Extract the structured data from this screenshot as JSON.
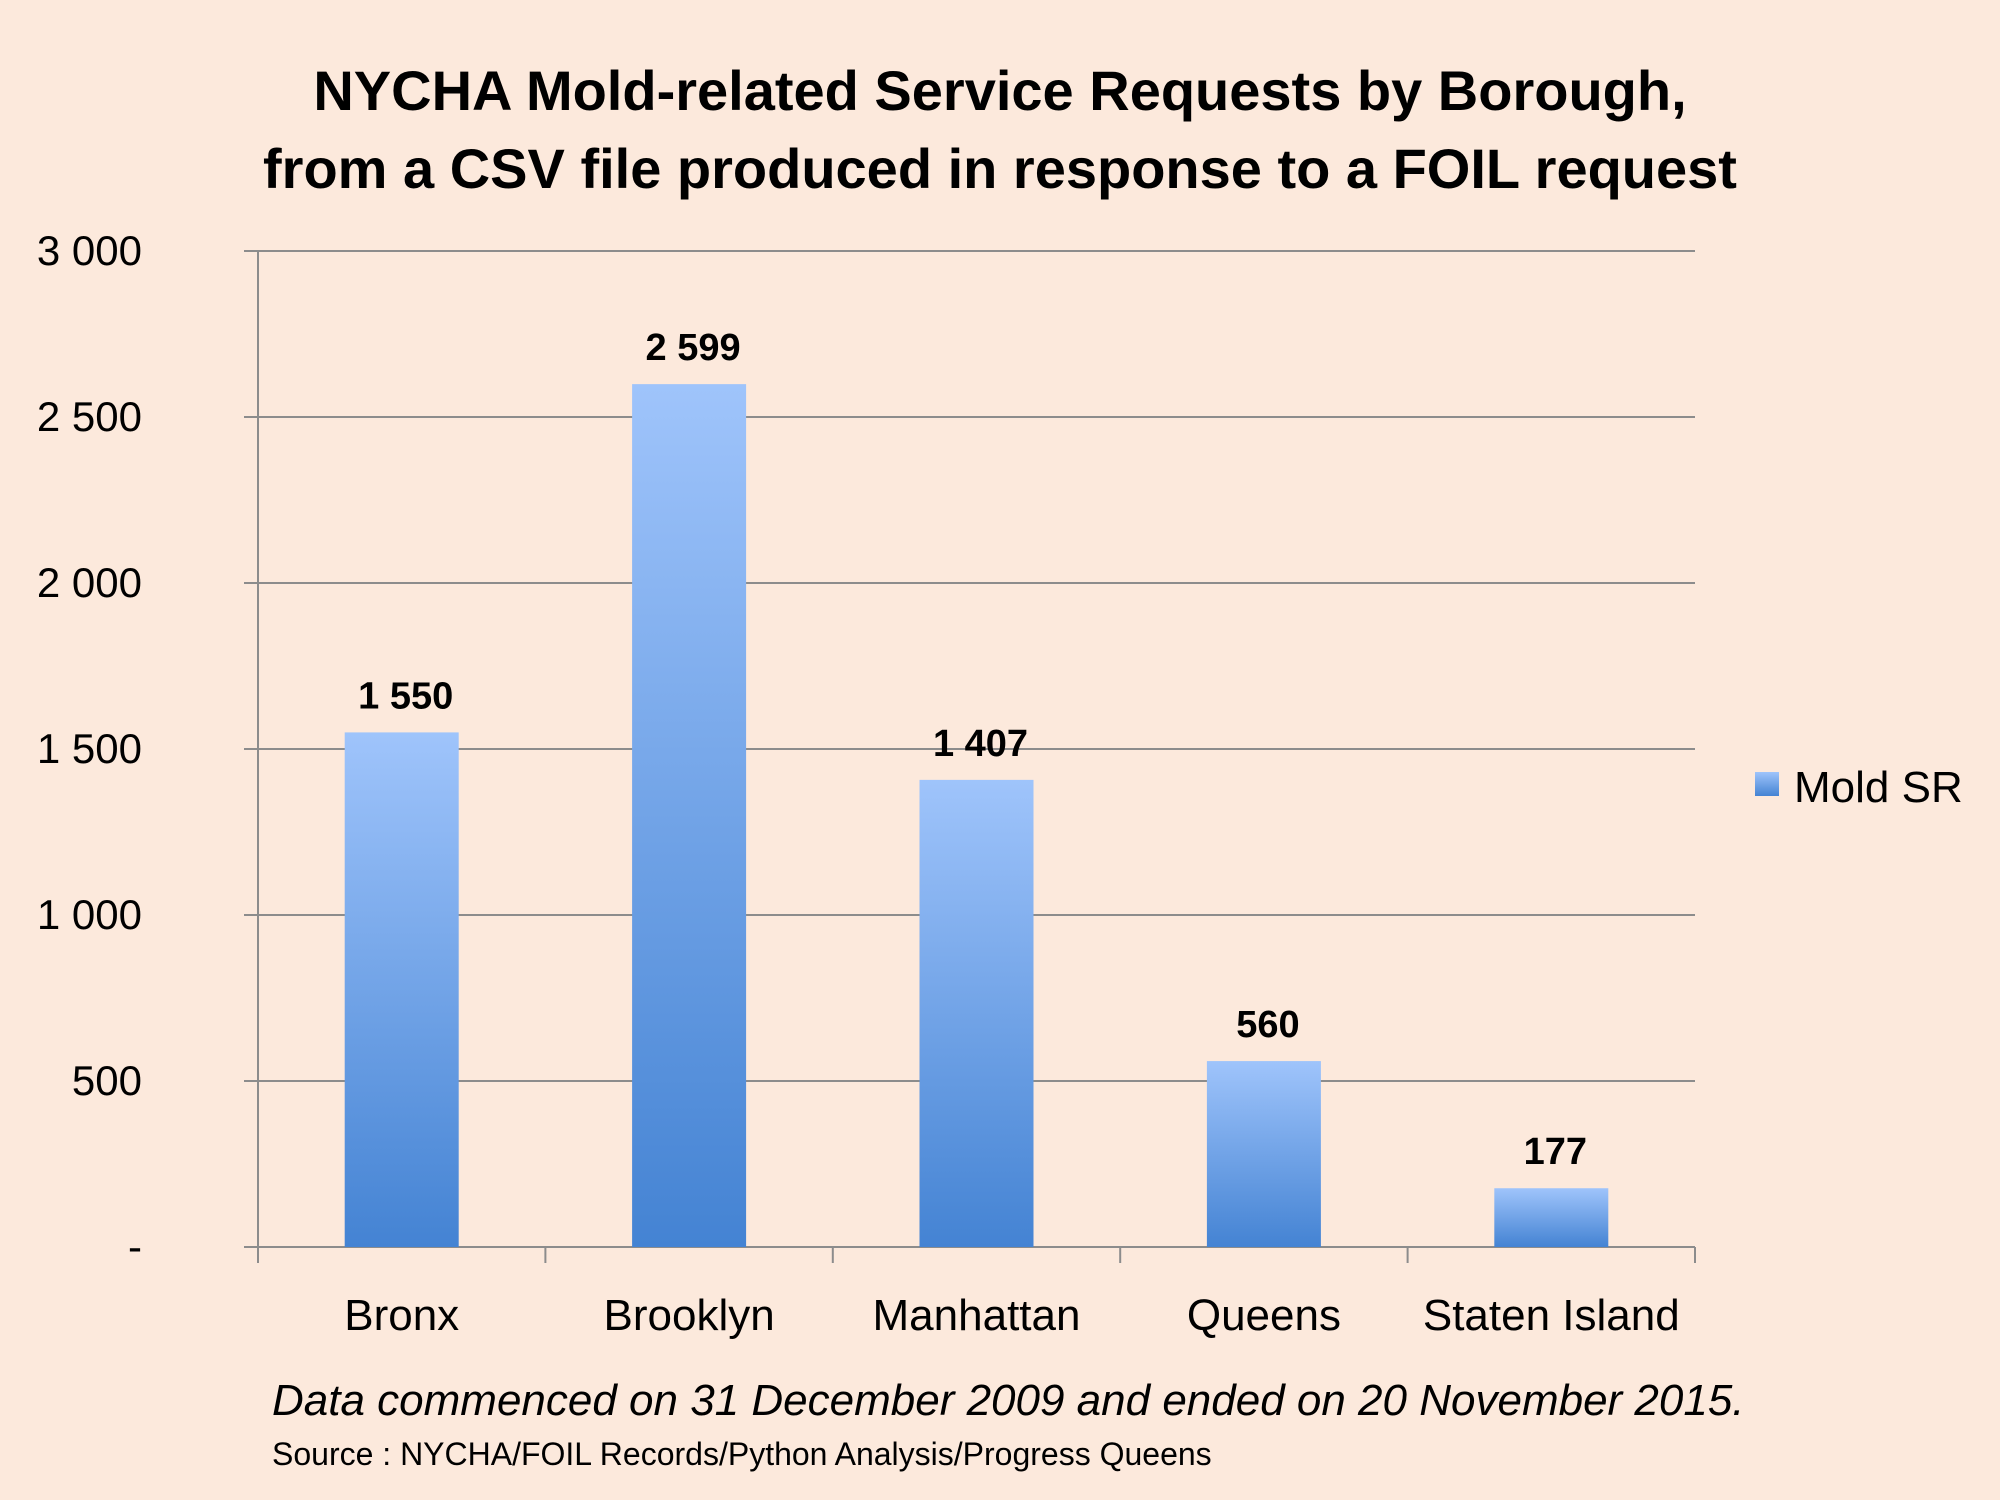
{
  "chart_data": {
    "type": "bar",
    "title_lines": [
      "NYCHA Mold-related Service Requests by Borough,",
      "from a CSV file produced in response to a FOIL request"
    ],
    "categories": [
      "Bronx",
      "Brooklyn",
      "Manhattan",
      "Queens",
      "Staten Island"
    ],
    "series": [
      {
        "name": "Mold SR",
        "values": [
          1550,
          2599,
          1407,
          560,
          177
        ]
      }
    ],
    "data_labels": [
      "1 550",
      "2 599",
      "1 407",
      "560",
      "177"
    ],
    "yticks": [
      0,
      500,
      1000,
      1500,
      2000,
      2500,
      3000
    ],
    "ytick_labels": [
      "-",
      "500",
      "1 000",
      "1 500",
      "2 000",
      "2 500",
      "3 000"
    ],
    "ylim": [
      0,
      3000
    ],
    "xlabel": "",
    "ylabel": "",
    "grid": true,
    "legend_position": "right",
    "colors": {
      "bar_top": "#9fc4fb",
      "bar_bottom": "#4483d3",
      "grid": "#8c8c8c",
      "background": "#fce9dc"
    }
  },
  "footer": {
    "note": "Data commenced on 31 December 2009 and ended on 20 November 2015.",
    "source": "Source : NYCHA/FOIL Records/Python Analysis/Progress Queens"
  }
}
